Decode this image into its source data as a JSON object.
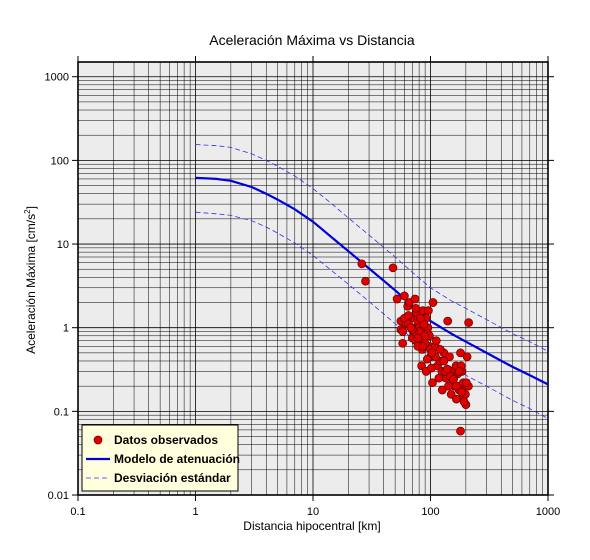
{
  "chart_data": {
    "type": "scatter",
    "title": "Aceleración Máxima vs Distancia",
    "xlabel": "Distancia hipocentral [km]",
    "ylabel": "Aceleración Máxima [cm/s²]",
    "ylabel_parts": {
      "main": "Aceleración Máxima [cm/s",
      "sup": "2",
      "end": "]"
    },
    "xscale": "log",
    "yscale": "log",
    "xlim": [
      0.1,
      1000
    ],
    "ylim": [
      0.01,
      1500
    ],
    "x_ticks": [
      "0.1",
      "1",
      "10",
      "100",
      "1000"
    ],
    "y_ticks": [
      "0.01",
      "0.1",
      "1",
      "10",
      "100",
      "1000"
    ],
    "grid": true,
    "legend_position": "bottom-left",
    "legend": [
      {
        "label": "Datos observados",
        "kind": "marker",
        "color": "#e00000"
      },
      {
        "label": "Modelo de atenuación",
        "kind": "line",
        "color": "#0000dd"
      },
      {
        "label": "Desviación estándar",
        "kind": "dashed",
        "color": "#3333ee"
      }
    ],
    "colors": {
      "background": "#ececec",
      "grid": "#000000",
      "points": "#e00000",
      "model": "#0000dd",
      "deviation": "#3333ee",
      "legend_bg": "#ffffdd"
    },
    "series": [
      {
        "name": "Datos observados",
        "kind": "scatter",
        "x": [
          26,
          28,
          48,
          52,
          56,
          58,
          60,
          62,
          64,
          66,
          68,
          70,
          72,
          74,
          76,
          78,
          80,
          82,
          84,
          86,
          88,
          90,
          92,
          95,
          98,
          100,
          56,
          60,
          65,
          70,
          75,
          80,
          85,
          90,
          95,
          100,
          105,
          110,
          115,
          120,
          125,
          130,
          135,
          140,
          145,
          150,
          155,
          160,
          165,
          170,
          175,
          180,
          185,
          190,
          195,
          200,
          205,
          210,
          65,
          72,
          78,
          84,
          88,
          92,
          98,
          104,
          110,
          118,
          126,
          134,
          142,
          150,
          158,
          166,
          174,
          182,
          190,
          198,
          75,
          82,
          89,
          96,
          103,
          112,
          121,
          130,
          139,
          148,
          157,
          166,
          175,
          184,
          193,
          202,
          211,
          180,
          70,
          78,
          86,
          94,
          102,
          58,
          68
        ],
        "y": [
          5.8,
          3.6,
          5.2,
          2.2,
          1.2,
          0.65,
          2.4,
          1.1,
          1.8,
          2.0,
          1.3,
          1.0,
          0.85,
          2.2,
          1.5,
          1.2,
          1.0,
          0.7,
          0.9,
          1.6,
          1.1,
          0.8,
          1.3,
          1.0,
          0.6,
          0.55,
          0.95,
          1.3,
          1.1,
          0.75,
          0.7,
          0.9,
          0.55,
          0.65,
          0.85,
          0.45,
          2.0,
          0.6,
          0.35,
          0.4,
          0.3,
          0.5,
          0.25,
          1.2,
          0.45,
          0.3,
          0.22,
          0.2,
          0.35,
          0.28,
          0.18,
          0.5,
          0.3,
          0.15,
          0.2,
          0.12,
          0.45,
          0.2,
          1.4,
          0.9,
          0.6,
          0.35,
          1.1,
          0.3,
          0.8,
          0.22,
          0.45,
          0.25,
          0.18,
          0.3,
          0.2,
          0.16,
          0.25,
          0.14,
          0.2,
          0.35,
          0.22,
          0.16,
          1.7,
          1.3,
          0.8,
          1.6,
          0.5,
          0.7,
          0.55,
          0.4,
          0.32,
          0.26,
          0.24,
          0.2,
          0.3,
          0.17,
          0.13,
          0.22,
          1.15,
          0.058,
          0.95,
          0.75,
          0.6,
          0.42,
          0.33,
          0.9,
          1.0
        ]
      },
      {
        "name": "Modelo de atenuación",
        "kind": "line",
        "x": [
          1,
          1.5,
          2,
          3,
          4,
          5,
          7,
          10,
          15,
          20,
          30,
          50,
          70,
          100,
          150,
          200,
          300,
          500,
          700,
          1000
        ],
        "y": [
          62,
          60,
          57,
          48,
          40,
          34,
          26,
          18.5,
          11.5,
          8.2,
          5.1,
          2.8,
          1.85,
          1.2,
          0.85,
          0.68,
          0.5,
          0.34,
          0.27,
          0.21
        ]
      },
      {
        "name": "Desviación estándar",
        "kind": "dashed",
        "x": [
          1,
          1.5,
          2,
          3,
          4,
          5,
          7,
          10,
          15,
          20,
          30,
          50,
          70,
          100,
          150,
          200,
          300,
          500,
          700,
          1000
        ],
        "y": [
          155,
          150,
          143,
          120,
          100,
          85,
          65,
          46,
          29,
          20.5,
          12.8,
          7,
          4.6,
          3.0,
          2.1,
          1.7,
          1.25,
          0.85,
          0.68,
          0.52
        ]
      },
      {
        "name": "Desviación estándar",
        "kind": "dashed",
        "x": [
          1,
          1.5,
          2,
          3,
          4,
          5,
          7,
          10,
          15,
          20,
          30,
          50,
          70,
          100,
          150,
          200,
          300,
          500,
          700,
          1000
        ],
        "y": [
          24,
          23,
          22,
          19,
          16,
          13.5,
          10.3,
          7.3,
          4.6,
          3.3,
          2.05,
          1.12,
          0.74,
          0.48,
          0.34,
          0.27,
          0.2,
          0.135,
          0.108,
          0.082
        ]
      }
    ]
  }
}
